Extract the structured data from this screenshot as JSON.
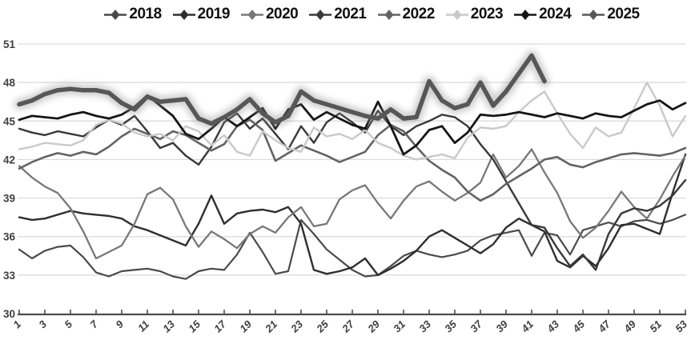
{
  "chart_data": {
    "type": "line",
    "title": "",
    "xlabel": "",
    "ylabel": "",
    "x": [
      1,
      2,
      3,
      4,
      5,
      6,
      7,
      8,
      9,
      10,
      11,
      12,
      13,
      14,
      15,
      16,
      17,
      18,
      19,
      20,
      21,
      22,
      23,
      24,
      25,
      26,
      27,
      28,
      29,
      30,
      31,
      32,
      33,
      34,
      35,
      36,
      37,
      38,
      39,
      40,
      41,
      42,
      43,
      44,
      45,
      46,
      47,
      48,
      49,
      50,
      51,
      52,
      53
    ],
    "x_tick_labels": [
      "1",
      "3",
      "5",
      "7",
      "9",
      "11",
      "13",
      "15",
      "17",
      "19",
      "21",
      "23",
      "25",
      "27",
      "29",
      "31",
      "33",
      "35",
      "37",
      "39",
      "41",
      "43",
      "45",
      "47",
      "49",
      "51",
      "53"
    ],
    "ylim": [
      30,
      51
    ],
    "y_ticks": [
      30,
      33,
      36,
      39,
      42,
      45,
      48,
      51
    ],
    "grid": "horizontal",
    "gridline_color": "#d9d9d9",
    "axis_color": "#4d4d4d",
    "legend_position": "top",
    "marker_shape": "diamond",
    "series": [
      {
        "name": "2018",
        "color": "#4a4a4a",
        "width": 2.2,
        "values": [
          35.0,
          34.3,
          34.9,
          35.2,
          35.3,
          34.4,
          33.2,
          32.9,
          33.3,
          33.4,
          33.5,
          33.3,
          32.9,
          32.7,
          33.3,
          33.5,
          33.4,
          34.6,
          36.3,
          34.8,
          33.1,
          33.3,
          37.3,
          36.2,
          35.0,
          34.2,
          33.4,
          32.9,
          33.0,
          33.7,
          34.5,
          34.9,
          34.6,
          34.4,
          34.6,
          34.9,
          35.7,
          36.1,
          36.3,
          36.5,
          34.5,
          36.3,
          36.1,
          34.6,
          36.5,
          36.8,
          37.1,
          36.8,
          37.2,
          37.3,
          37.0,
          37.3,
          37.7
        ]
      },
      {
        "name": "2019",
        "color": "#2e2e2e",
        "width": 2.4,
        "values": [
          37.5,
          37.3,
          37.4,
          37.7,
          38.0,
          37.8,
          37.7,
          37.6,
          37.4,
          36.8,
          36.5,
          36.1,
          35.7,
          35.3,
          37.0,
          39.2,
          37.0,
          37.8,
          38.0,
          38.1,
          37.9,
          38.3,
          37.0,
          33.4,
          33.1,
          33.3,
          33.6,
          34.3,
          33.0,
          33.5,
          34.1,
          34.9,
          36.0,
          36.5,
          35.9,
          35.3,
          34.7,
          35.4,
          36.7,
          37.4,
          36.9,
          36.4,
          34.1,
          33.6,
          34.5,
          33.7,
          35.1,
          36.9,
          37.0,
          36.6,
          36.2,
          39.4,
          42.4
        ]
      },
      {
        "name": "2020",
        "color": "#787878",
        "width": 2.3,
        "values": [
          41.5,
          40.6,
          39.9,
          39.4,
          38.2,
          36.4,
          34.3,
          34.8,
          35.3,
          37.0,
          39.3,
          39.8,
          38.9,
          36.8,
          35.2,
          36.4,
          35.8,
          35.1,
          36.2,
          36.8,
          36.3,
          37.5,
          38.3,
          36.8,
          37.0,
          38.9,
          39.6,
          40.0,
          38.6,
          37.4,
          38.8,
          39.9,
          40.3,
          39.5,
          38.8,
          39.4,
          40.2,
          42.4,
          40.6,
          41.5,
          42.8,
          41.0,
          39.4,
          37.2,
          35.9,
          36.7,
          38.0,
          39.5,
          38.3,
          37.4,
          38.9,
          40.7,
          42.3
        ]
      },
      {
        "name": "2021",
        "color": "#383838",
        "width": 2.4,
        "values": [
          44.4,
          44.1,
          43.9,
          44.2,
          44.0,
          43.8,
          44.5,
          45.1,
          44.7,
          45.4,
          44.2,
          42.9,
          43.3,
          42.3,
          41.6,
          43.0,
          44.9,
          45.6,
          44.4,
          45.2,
          44.0,
          42.8,
          44.6,
          43.3,
          44.9,
          45.6,
          44.9,
          44.1,
          45.8,
          44.6,
          43.9,
          44.6,
          45.0,
          45.5,
          45.3,
          44.6,
          43.2,
          42.0,
          40.3,
          38.6,
          36.9,
          36.7,
          35.1,
          33.7,
          34.6,
          33.4,
          36.2,
          37.8,
          38.2,
          38.0,
          38.4,
          39.2,
          40.4
        ]
      },
      {
        "name": "2022",
        "color": "#636363",
        "width": 2.6,
        "values": [
          41.3,
          41.8,
          42.2,
          42.5,
          42.3,
          42.6,
          42.4,
          43.0,
          43.8,
          44.4,
          44.0,
          43.6,
          44.2,
          43.9,
          43.3,
          42.7,
          43.2,
          44.6,
          45.1,
          44.3,
          41.9,
          42.5,
          43.1,
          42.7,
          42.3,
          41.8,
          42.2,
          42.6,
          43.9,
          44.7,
          44.2,
          43.0,
          41.9,
          41.2,
          40.6,
          39.5,
          38.8,
          39.3,
          40.1,
          40.7,
          41.3,
          42.0,
          42.2,
          41.6,
          41.4,
          41.8,
          42.1,
          42.4,
          42.5,
          42.4,
          42.3,
          42.5,
          42.9
        ]
      },
      {
        "name": "2023",
        "color": "#c9c9c9",
        "width": 2.4,
        "values": [
          42.8,
          43.0,
          43.3,
          43.2,
          43.1,
          43.5,
          44.7,
          45.1,
          44.8,
          44.1,
          43.8,
          44.0,
          43.5,
          44.6,
          44.2,
          43.1,
          43.9,
          42.6,
          42.3,
          44.2,
          43.5,
          42.9,
          42.6,
          44.5,
          43.8,
          44.0,
          43.6,
          44.3,
          43.3,
          42.9,
          42.3,
          42.0,
          42.2,
          42.4,
          42.1,
          43.7,
          44.5,
          44.4,
          44.6,
          45.7,
          46.6,
          47.3,
          45.6,
          44.0,
          42.9,
          44.5,
          43.8,
          44.1,
          46.0,
          48.0,
          46.2,
          43.8,
          45.4
        ]
      },
      {
        "name": "2024",
        "color": "#161616",
        "width": 2.8,
        "values": [
          45.1,
          45.4,
          45.3,
          45.2,
          45.5,
          45.7,
          45.4,
          45.2,
          45.5,
          46.1,
          47.0,
          46.2,
          45.4,
          44.0,
          43.6,
          44.4,
          45.3,
          44.6,
          45.3,
          46.0,
          44.4,
          45.9,
          46.3,
          45.1,
          45.7,
          45.2,
          44.7,
          44.4,
          46.5,
          44.6,
          42.4,
          43.1,
          44.3,
          44.6,
          43.3,
          44.1,
          45.5,
          45.4,
          45.5,
          45.7,
          45.5,
          45.3,
          45.6,
          45.4,
          45.2,
          45.6,
          45.4,
          45.3,
          45.8,
          46.3,
          46.6,
          45.9,
          46.4
        ]
      },
      {
        "name": "2025",
        "color": "#575757",
        "width": 5.5,
        "glow": true,
        "markers": true,
        "values": [
          46.3,
          46.6,
          47.1,
          47.4,
          47.5,
          47.4,
          47.4,
          47.2,
          46.4,
          45.9,
          46.9,
          46.5,
          46.6,
          46.7,
          45.2,
          44.8,
          45.3,
          45.9,
          46.7,
          45.6,
          44.9,
          45.4,
          47.3,
          46.6,
          46.3,
          46.0,
          45.7,
          45.4,
          45.2,
          45.9,
          45.2,
          45.3,
          48.1,
          46.6,
          46.0,
          46.3,
          48.0,
          46.2,
          47.3,
          48.7,
          50.1,
          48.1
        ]
      }
    ]
  }
}
